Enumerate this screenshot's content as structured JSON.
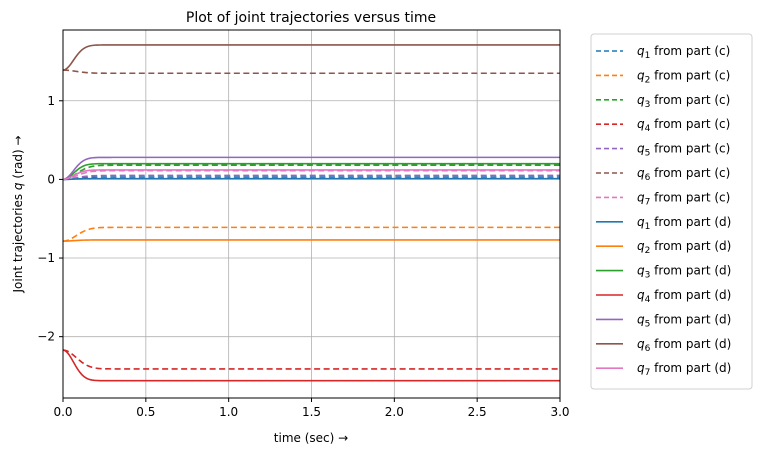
{
  "chart_data": {
    "type": "line",
    "title": "Plot of joint trajectories versus time",
    "xlabel": "time (sec)",
    "xlabel_arrow": "→",
    "ylabel_prefix": "Joint trajectories ",
    "ylabel_var": "q",
    "ylabel_suffix": " (rad)",
    "ylabel_arrow": "→",
    "xlim": [
      0,
      3
    ],
    "ylim": [
      -2.78,
      1.9
    ],
    "xticks": [
      0,
      0.5,
      1,
      1.5,
      2,
      2.5,
      3
    ],
    "xtick_labels": [
      "0.0",
      "0.5",
      "1.0",
      "1.5",
      "2.0",
      "2.5",
      "3.0"
    ],
    "yticks": [
      -2,
      -1,
      0,
      1
    ],
    "ytick_labels": [
      "−2",
      "−1",
      "0",
      "1"
    ],
    "grid": true,
    "legend_position": "outside-right",
    "series": [
      {
        "name": "q",
        "sub": "1",
        "suffix": " from part (c)",
        "style": "dashed",
        "color": "#1f77b4",
        "start": 0.0,
        "end": 0.03,
        "tau": 0.1
      },
      {
        "name": "q",
        "sub": "2",
        "suffix": " from part (c)",
        "style": "dashed",
        "color": "#ff7f0e",
        "start": -0.785,
        "end": -0.61,
        "tau": 0.1
      },
      {
        "name": "q",
        "sub": "3",
        "suffix": " from part (c)",
        "style": "dashed",
        "color": "#2ca02c",
        "start": 0.0,
        "end": 0.18,
        "tau": 0.1
      },
      {
        "name": "q",
        "sub": "4",
        "suffix": " from part (c)",
        "style": "dashed",
        "color": "#d62728",
        "start": -2.17,
        "end": -2.41,
        "tau": 0.1
      },
      {
        "name": "q",
        "sub": "5",
        "suffix": " from part (c)",
        "style": "dashed",
        "color": "#9467bd",
        "start": 0.0,
        "end": 0.05,
        "tau": 0.1
      },
      {
        "name": "q",
        "sub": "6",
        "suffix": " from part (c)",
        "style": "dashed",
        "color": "#8c564b",
        "start": 1.39,
        "end": 1.35,
        "tau": 0.1
      },
      {
        "name": "q",
        "sub": "7",
        "suffix": " from part (c)",
        "style": "dashed",
        "color": "#e377c2",
        "start": 0.0,
        "end": 0.11,
        "tau": 0.1
      },
      {
        "name": "q",
        "sub": "1",
        "suffix": " from part (d)",
        "style": "solid",
        "color": "#1f77b4",
        "start": 0.0,
        "end": 0.01,
        "tau": 0.08
      },
      {
        "name": "q",
        "sub": "2",
        "suffix": " from part (d)",
        "style": "solid",
        "color": "#ff7f0e",
        "start": -0.785,
        "end": -0.77,
        "tau": 0.08
      },
      {
        "name": "q",
        "sub": "3",
        "suffix": " from part (d)",
        "style": "solid",
        "color": "#2ca02c",
        "start": 0.0,
        "end": 0.2,
        "tau": 0.08
      },
      {
        "name": "q",
        "sub": "4",
        "suffix": " from part (d)",
        "style": "solid",
        "color": "#d62728",
        "start": -2.17,
        "end": -2.56,
        "tau": 0.08
      },
      {
        "name": "q",
        "sub": "5",
        "suffix": " from part (d)",
        "style": "solid",
        "color": "#9467bd",
        "start": 0.0,
        "end": 0.28,
        "tau": 0.08
      },
      {
        "name": "q",
        "sub": "6",
        "suffix": " from part (d)",
        "style": "solid",
        "color": "#8c564b",
        "start": 1.39,
        "end": 1.71,
        "tau": 0.08
      },
      {
        "name": "q",
        "sub": "7",
        "suffix": " from part (d)",
        "style": "solid",
        "color": "#e377c2",
        "start": 0.0,
        "end": 0.12,
        "tau": 0.08
      }
    ]
  }
}
